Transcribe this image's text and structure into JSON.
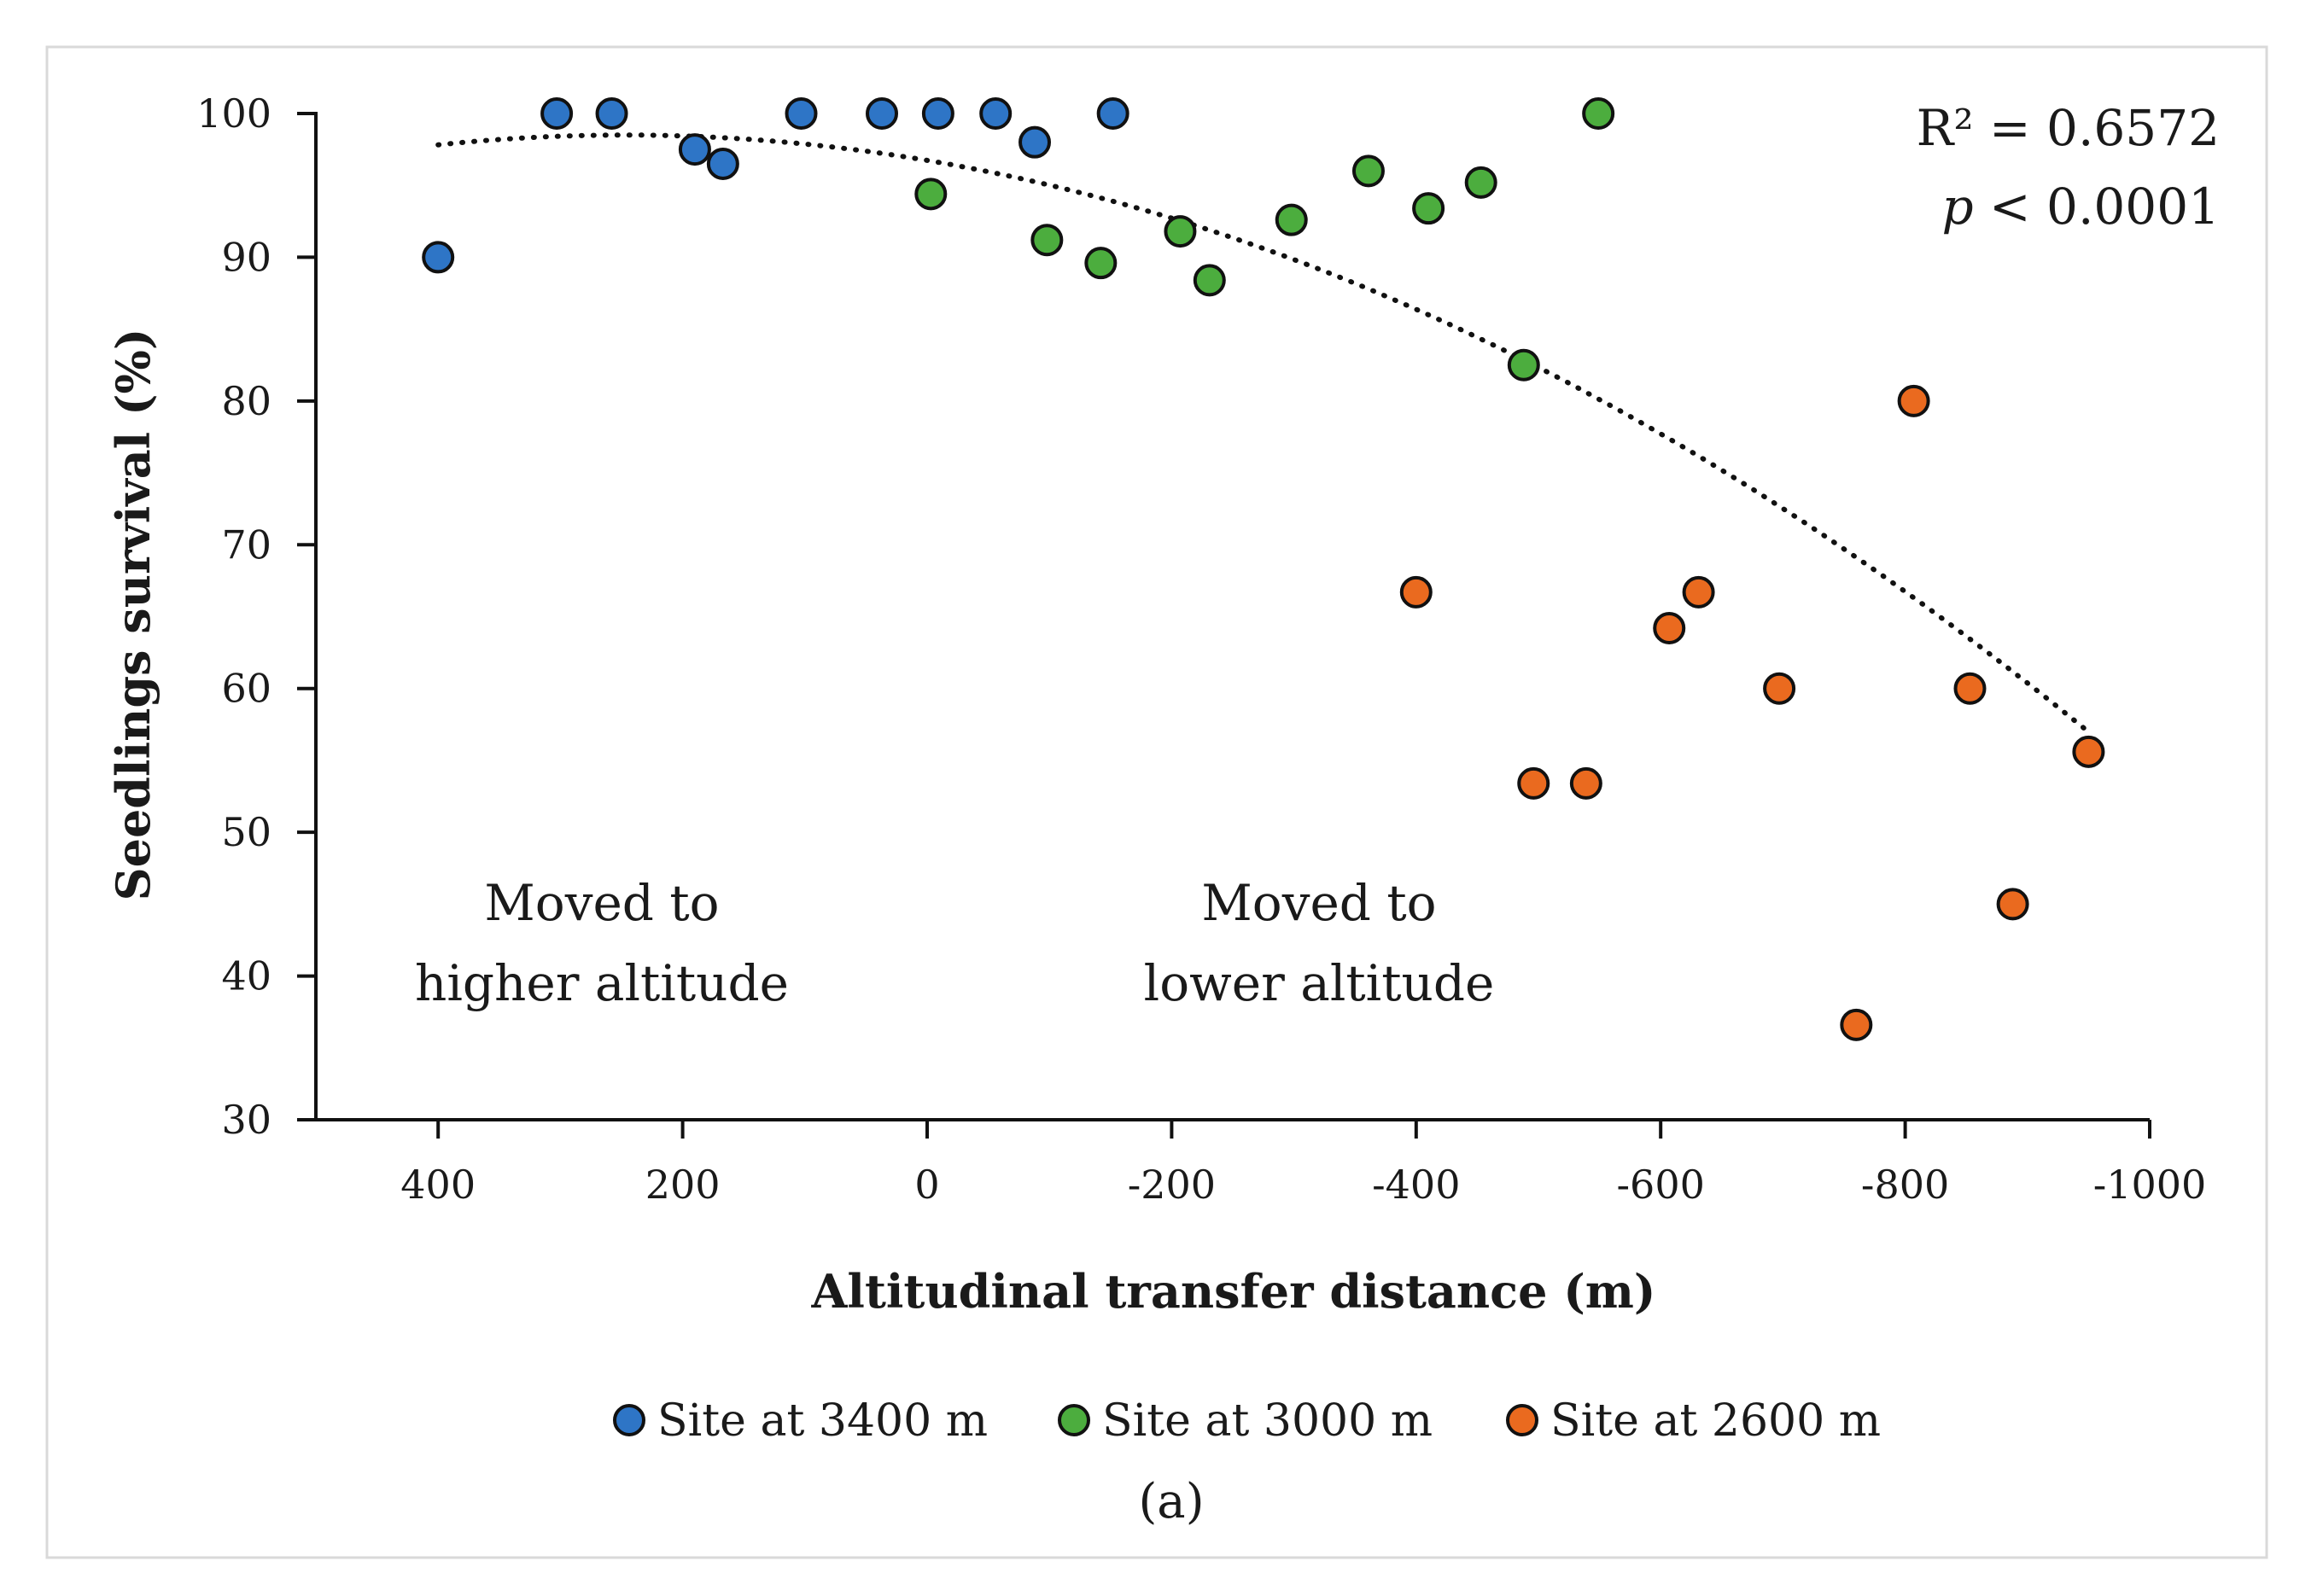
{
  "chart_data": {
    "type": "scatter",
    "title": "",
    "xlabel": "Altitudinal transfer distance (m)",
    "ylabel": "Seedlings survival (%)",
    "xlim": [
      500,
      -1000
    ],
    "ylim": [
      30,
      100
    ],
    "xticks": [
      400,
      200,
      0,
      -200,
      -400,
      -600,
      -800,
      -1000
    ],
    "yticks": [
      30,
      40,
      50,
      60,
      70,
      80,
      90,
      100
    ],
    "series": [
      {
        "name": "Site at 3400 m",
        "color": "#2e75c6",
        "points": [
          {
            "x": 400,
            "y": 90
          },
          {
            "x": 303,
            "y": 100
          },
          {
            "x": 258,
            "y": 100
          },
          {
            "x": 190,
            "y": 97.5
          },
          {
            "x": 167,
            "y": 96.5
          },
          {
            "x": 103,
            "y": 100
          },
          {
            "x": 37,
            "y": 100
          },
          {
            "x": -9,
            "y": 100
          },
          {
            "x": -56,
            "y": 100
          },
          {
            "x": -88,
            "y": 98
          },
          {
            "x": -152,
            "y": 100
          }
        ]
      },
      {
        "name": "Site at 3000 m",
        "color": "#4cad3e",
        "points": [
          {
            "x": -3,
            "y": 94.4
          },
          {
            "x": -98,
            "y": 91.2
          },
          {
            "x": -142,
            "y": 89.6
          },
          {
            "x": -207,
            "y": 91.8
          },
          {
            "x": -231,
            "y": 88.4
          },
          {
            "x": -298,
            "y": 92.6
          },
          {
            "x": -361,
            "y": 96
          },
          {
            "x": -410,
            "y": 93.4
          },
          {
            "x": -453,
            "y": 95.2
          },
          {
            "x": -488,
            "y": 82.5
          },
          {
            "x": -549,
            "y": 100
          }
        ]
      },
      {
        "name": "Site at 2600 m",
        "color": "#ea6a1f",
        "points": [
          {
            "x": -400,
            "y": 66.7
          },
          {
            "x": -496,
            "y": 53.4
          },
          {
            "x": -539,
            "y": 53.4
          },
          {
            "x": -607,
            "y": 64.2
          },
          {
            "x": -631,
            "y": 66.7
          },
          {
            "x": -697,
            "y": 60
          },
          {
            "x": -760,
            "y": 36.6
          },
          {
            "x": -807,
            "y": 80
          },
          {
            "x": -853,
            "y": 60
          },
          {
            "x": -888,
            "y": 45
          },
          {
            "x": -950,
            "y": 55.6
          }
        ]
      }
    ],
    "trendline": {
      "type": "quadratic",
      "style": "dotted",
      "x_range": [
        400,
        -950
      ],
      "coefficients": {
        "a": -2.9e-05,
        "b": 0.0143,
        "c": 96.74
      }
    },
    "annotations": {
      "r2_label": "R² = 0.6572",
      "p_italic": "p",
      "p_rest": " < 0.0001",
      "higher_line1": "Moved to",
      "higher_line2": "higher altitude",
      "lower_line1": "Moved to",
      "lower_line2": "lower altitude"
    },
    "legend_position": "bottom",
    "caption": "(a)"
  }
}
